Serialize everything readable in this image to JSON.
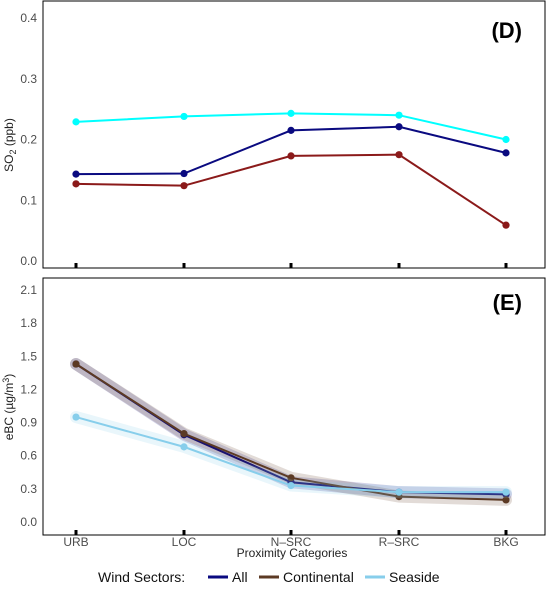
{
  "chart_data": [
    {
      "type": "line",
      "panel_tag": "(D)",
      "ylabel_main": "SO",
      "ylabel_sub": "2",
      "ylabel_unit": " (ppb)",
      "ylim": [
        0.0,
        0.4
      ],
      "yticks": [
        "0.0",
        "0.1",
        "0.2",
        "0.3",
        "0.4"
      ],
      "ytick_values": [
        0.0,
        0.1,
        0.2,
        0.3,
        0.4
      ],
      "grid": false,
      "categories": [
        "URB",
        "LOC",
        "N–SRC",
        "R–SRC",
        "BKG"
      ],
      "series": [
        {
          "color": "#00FFFF",
          "values": [
            0.229,
            0.238,
            0.243,
            0.24,
            0.2
          ]
        },
        {
          "color": "#0A0A80",
          "values": [
            0.143,
            0.144,
            0.215,
            0.221,
            0.178
          ]
        },
        {
          "color": "#8B1A1A",
          "values": [
            0.127,
            0.124,
            0.173,
            0.175,
            0.059
          ]
        }
      ]
    },
    {
      "type": "line",
      "panel_tag": "(E)",
      "ylabel_main": "eBC (µg/m",
      "ylabel_sup": "3",
      "ylabel_end": ")",
      "ylim": [
        0.0,
        2.1
      ],
      "yticks": [
        "0.0",
        "0.3",
        "0.6",
        "0.9",
        "1.2",
        "1.5",
        "1.8",
        "2.1"
      ],
      "ytick_values": [
        0.0,
        0.3,
        0.6,
        0.9,
        1.2,
        1.5,
        1.8,
        2.1
      ],
      "grid": false,
      "xlabel": "Proximity Categories",
      "categories": [
        "URB",
        "LOC",
        "N–SRC",
        "R–SRC",
        "BKG"
      ],
      "series": [
        {
          "name": "All",
          "color": "#0A0A80",
          "values": [
            1.43,
            0.79,
            0.36,
            0.27,
            0.25
          ]
        },
        {
          "name": "Continental",
          "color": "#5C3A24",
          "values": [
            1.43,
            0.8,
            0.4,
            0.23,
            0.2
          ]
        },
        {
          "name": "Seaside",
          "color": "#87CEEB",
          "values": [
            0.95,
            0.68,
            0.33,
            0.27,
            0.27
          ]
        }
      ]
    }
  ],
  "legend": {
    "title": "Wind Sectors:",
    "placement": "bottom",
    "items": [
      {
        "label": "All",
        "color": "#0A0A80"
      },
      {
        "label": "Continental",
        "color": "#5C3A24"
      },
      {
        "label": "Seaside",
        "color": "#87CEEB"
      }
    ]
  }
}
